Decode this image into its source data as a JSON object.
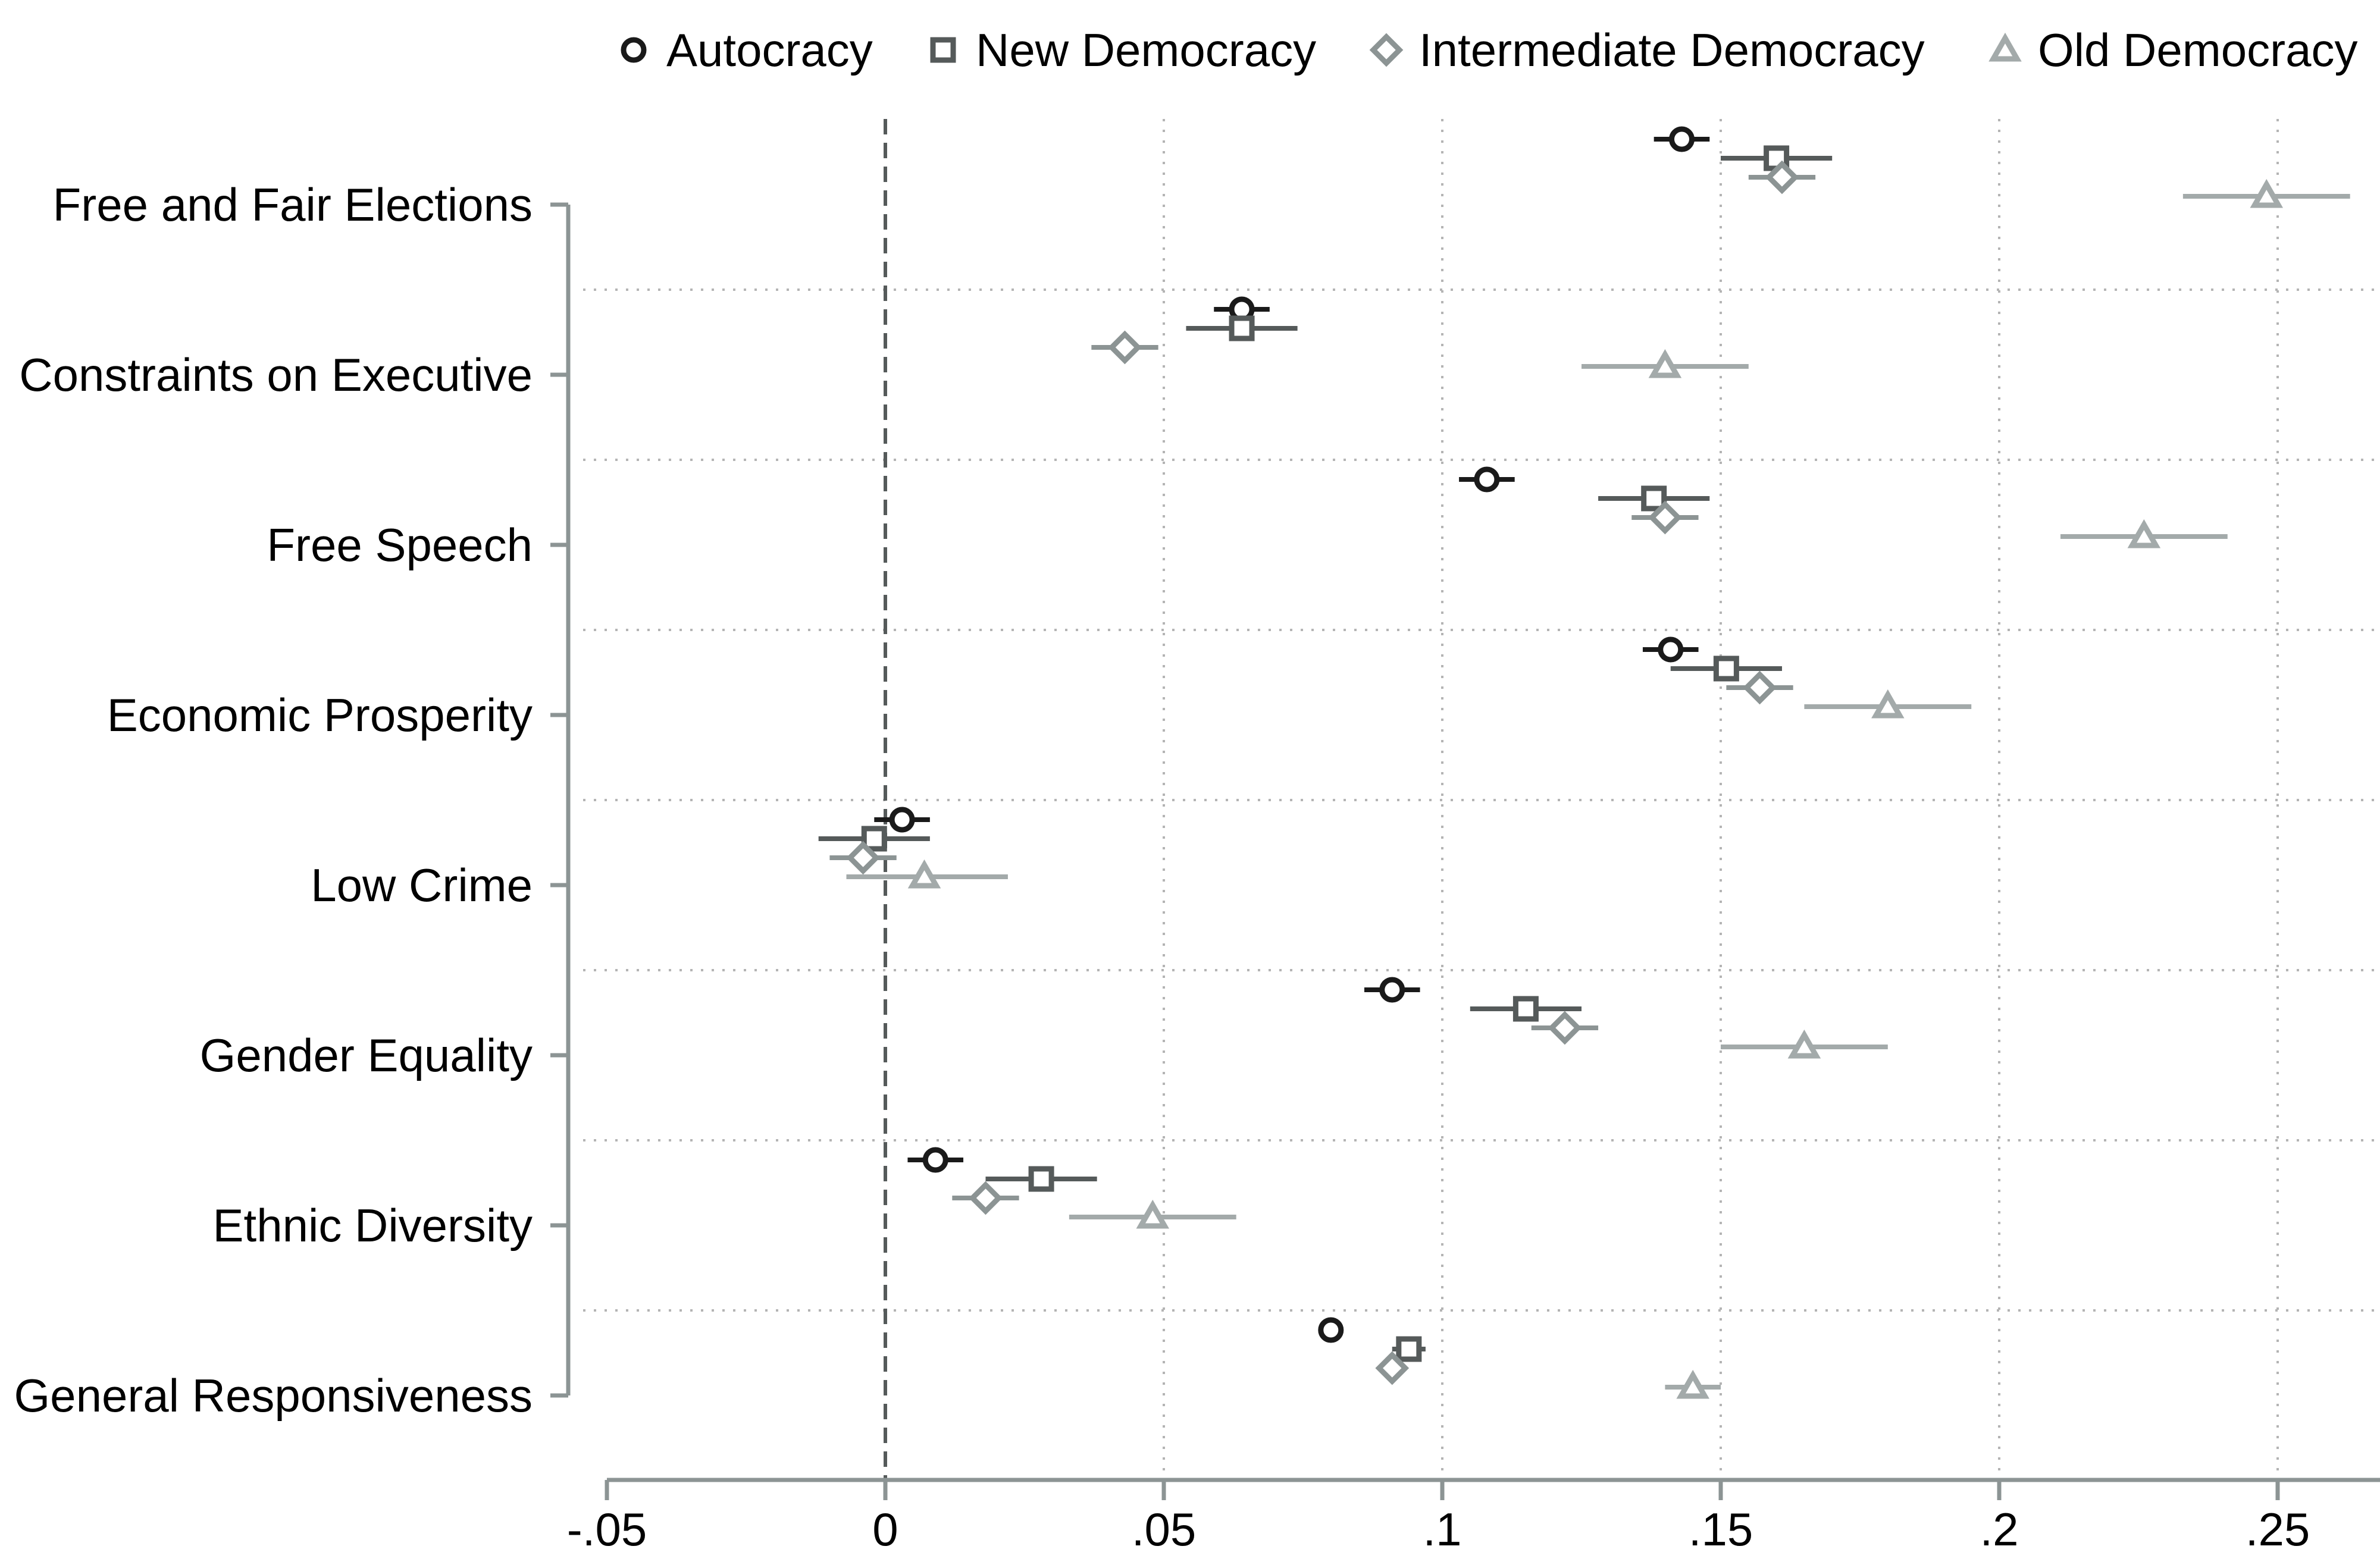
{
  "chart_data": {
    "type": "scatter",
    "subtype": "dot-and-whisker (coefficient plot)",
    "categories": [
      "Free and Fair Elections",
      "Constraints on Executive",
      "Free Speech",
      "Economic Prosperity",
      "Low Crime",
      "Gender Equality",
      "Ethnic Diversity",
      "General Responsiveness"
    ],
    "series": [
      {
        "name": "Autocracy",
        "marker": "circle",
        "color": "#1a1a1a",
        "estimates": [
          0.143,
          0.064,
          0.108,
          0.141,
          0.003,
          0.091,
          0.009,
          0.08
        ],
        "ci_low": [
          0.138,
          0.059,
          0.103,
          0.136,
          -0.002,
          0.086,
          0.004,
          0.078
        ],
        "ci_high": [
          0.148,
          0.069,
          0.113,
          0.146,
          0.008,
          0.096,
          0.014,
          0.082
        ]
      },
      {
        "name": "New Democracy",
        "marker": "square",
        "color": "#555a5a",
        "estimates": [
          0.16,
          0.064,
          0.138,
          0.151,
          -0.002,
          0.115,
          0.028,
          0.094
        ],
        "ci_low": [
          0.15,
          0.054,
          0.128,
          0.141,
          -0.012,
          0.105,
          0.018,
          0.091
        ],
        "ci_high": [
          0.17,
          0.074,
          0.148,
          0.161,
          0.008,
          0.125,
          0.038,
          0.097
        ]
      },
      {
        "name": "Intermediate Democracy",
        "marker": "diamond",
        "color": "#8c9494",
        "estimates": [
          0.161,
          0.043,
          0.14,
          0.157,
          -0.004,
          0.122,
          0.018,
          0.091
        ],
        "ci_low": [
          0.155,
          0.037,
          0.134,
          0.151,
          -0.01,
          0.116,
          0.012,
          0.089
        ],
        "ci_high": [
          0.167,
          0.049,
          0.146,
          0.163,
          0.002,
          0.128,
          0.024,
          0.093
        ]
      },
      {
        "name": "Old Democracy",
        "marker": "triangle",
        "color": "#a3aaaa",
        "estimates": [
          0.248,
          0.14,
          0.226,
          0.18,
          0.007,
          0.165,
          0.048,
          0.145
        ],
        "ci_low": [
          0.233,
          0.125,
          0.211,
          0.165,
          -0.007,
          0.15,
          0.033,
          0.14
        ],
        "ci_high": [
          0.263,
          0.155,
          0.241,
          0.195,
          0.022,
          0.18,
          0.063,
          0.15
        ]
      }
    ],
    "xlim": [
      -0.05,
      0.25
    ],
    "x_ticks": [
      -0.05,
      0,
      0.05,
      0.1,
      0.15,
      0.2,
      0.25
    ],
    "x_tick_labels": [
      "-.05",
      "0",
      ".05",
      ".1",
      ".15",
      ".2",
      ".25"
    ],
    "reference_line": 0,
    "title": "",
    "xlabel": "",
    "ylabel": "",
    "grid": true,
    "legend_position": "top"
  },
  "colors": {
    "axis": "#8c9494",
    "grid": "#b4b4b4",
    "reference_line": "#555a5a"
  }
}
